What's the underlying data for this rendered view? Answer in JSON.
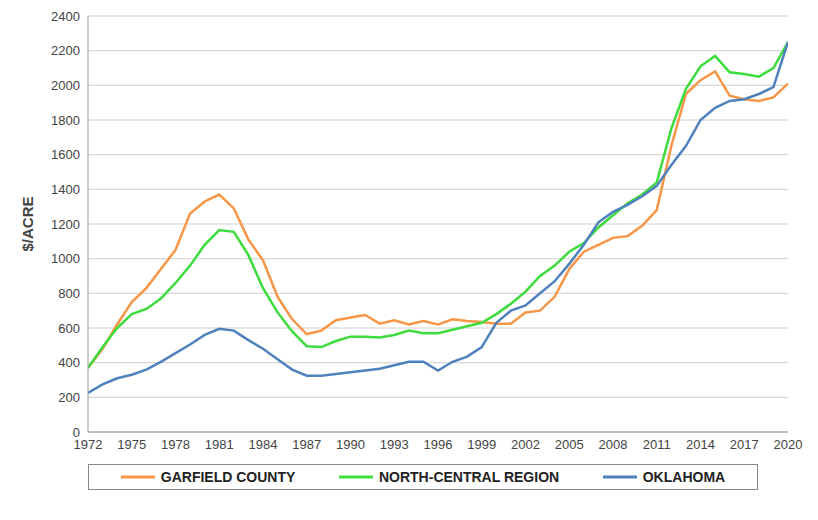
{
  "chart_data": {
    "type": "line",
    "y_label": "$/ACRE",
    "x": [
      1972,
      1973,
      1974,
      1975,
      1976,
      1977,
      1978,
      1979,
      1980,
      1981,
      1982,
      1983,
      1984,
      1985,
      1986,
      1987,
      1988,
      1989,
      1990,
      1991,
      1992,
      1993,
      1994,
      1995,
      1996,
      1997,
      1998,
      1999,
      2000,
      2001,
      2002,
      2003,
      2004,
      2005,
      2006,
      2007,
      2008,
      2009,
      2010,
      2011,
      2012,
      2013,
      2014,
      2015,
      2016,
      2017,
      2018,
      2019,
      2020
    ],
    "series": [
      {
        "name": "GARFIELD COUNTY",
        "color": "#f79646",
        "values": [
          370,
          480,
          620,
          750,
          830,
          940,
          1050,
          1260,
          1330,
          1370,
          1290,
          1110,
          990,
          780,
          650,
          565,
          585,
          645,
          660,
          675,
          625,
          645,
          620,
          640,
          620,
          650,
          640,
          635,
          625,
          625,
          690,
          700,
          780,
          940,
          1040,
          1080,
          1120,
          1130,
          1190,
          1280,
          1650,
          1950,
          2030,
          2080,
          1940,
          1920,
          1910,
          1930,
          2010
        ]
      },
      {
        "name": "NORTH-CENTRAL REGION",
        "color": "#3ddc3d",
        "values": [
          370,
          490,
          600,
          680,
          710,
          770,
          860,
          960,
          1080,
          1165,
          1155,
          1020,
          830,
          690,
          580,
          495,
          490,
          525,
          550,
          550,
          545,
          560,
          585,
          570,
          570,
          590,
          610,
          630,
          680,
          740,
          810,
          900,
          960,
          1040,
          1090,
          1180,
          1250,
          1320,
          1370,
          1440,
          1750,
          1980,
          2110,
          2170,
          2075,
          2065,
          2050,
          2100,
          2250
        ]
      },
      {
        "name": "OKLAHOMA",
        "color": "#4f81bd",
        "values": [
          225,
          275,
          310,
          330,
          360,
          405,
          455,
          505,
          560,
          595,
          585,
          530,
          480,
          420,
          360,
          325,
          325,
          335,
          345,
          355,
          365,
          385,
          405,
          405,
          355,
          405,
          435,
          490,
          630,
          700,
          730,
          800,
          870,
          970,
          1080,
          1210,
          1270,
          1310,
          1360,
          1420,
          1540,
          1650,
          1800,
          1870,
          1910,
          1920,
          1950,
          1990,
          2250
        ]
      }
    ],
    "xlim": [
      1972,
      2020
    ],
    "xticks": [
      1972,
      1975,
      1978,
      1981,
      1984,
      1987,
      1990,
      1993,
      1996,
      1999,
      2002,
      2005,
      2008,
      2011,
      2014,
      2017,
      2020
    ],
    "ylim": [
      0,
      2400
    ],
    "yticks": [
      0,
      200,
      400,
      600,
      800,
      1000,
      1200,
      1400,
      1600,
      1800,
      2000,
      2200,
      2400
    ],
    "grid": true,
    "legend": "bottom"
  }
}
